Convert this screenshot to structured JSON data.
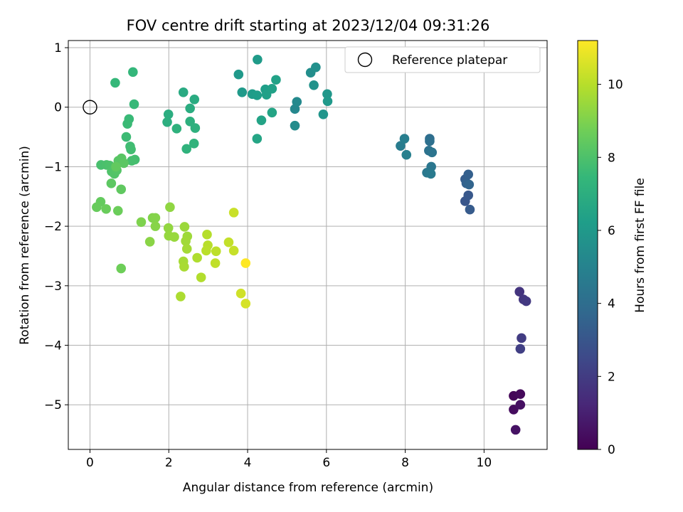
{
  "chart_data": {
    "type": "scatter",
    "title": "FOV centre drift starting at 2023/12/04 09:31:26",
    "xlabel": "Angular distance from reference (arcmin)",
    "ylabel": "Rotation from reference (arcmin)",
    "xlim": [
      -0.55,
      11.6
    ],
    "ylim": [
      -5.75,
      1.12
    ],
    "x_ticks": [
      0,
      2,
      4,
      6,
      8,
      10
    ],
    "y_ticks": [
      1,
      0,
      -1,
      -2,
      -3,
      -4,
      -5
    ],
    "grid": true,
    "legend": {
      "placement": "top-right",
      "entries": [
        "Reference platepar"
      ]
    },
    "reference_point": {
      "x": 0,
      "y": 0
    },
    "colorbar": {
      "label": "Hours from first FF file",
      "range": [
        0,
        11.2
      ],
      "ticks": [
        0,
        2,
        4,
        6,
        8,
        10
      ],
      "colormap": [
        "#440154",
        "#482878",
        "#3e4989",
        "#31688e",
        "#26828e",
        "#1f9e89",
        "#35b779",
        "#6ece58",
        "#b5de2b",
        "#fde725"
      ]
    },
    "series": [
      {
        "points": [
          [
            10.75,
            -4.85,
            0.15
          ],
          [
            10.92,
            -4.82,
            0.25
          ],
          [
            10.75,
            -5.08,
            0.35
          ],
          [
            10.92,
            -5.0,
            0.45
          ],
          [
            10.8,
            -5.42,
            0.55
          ],
          [
            10.9,
            -3.1,
            1.7
          ],
          [
            11.0,
            -3.23,
            1.8
          ],
          [
            11.07,
            -3.26,
            1.9
          ],
          [
            10.95,
            -3.88,
            2.0
          ],
          [
            10.92,
            -4.06,
            2.1
          ],
          [
            9.52,
            -1.58,
            3.0
          ],
          [
            9.6,
            -1.48,
            3.1
          ],
          [
            9.64,
            -1.72,
            3.2
          ],
          [
            9.52,
            -1.21,
            3.3
          ],
          [
            9.6,
            -1.13,
            3.4
          ],
          [
            9.55,
            -1.28,
            3.5
          ],
          [
            9.62,
            -1.3,
            3.6
          ],
          [
            8.62,
            -0.53,
            4.0
          ],
          [
            8.62,
            -0.57,
            4.1
          ],
          [
            8.6,
            -0.73,
            4.2
          ],
          [
            8.68,
            -0.76,
            4.3
          ],
          [
            8.66,
            -1.0,
            4.4
          ],
          [
            8.55,
            -1.1,
            4.5
          ],
          [
            8.65,
            -1.12,
            4.6
          ],
          [
            7.88,
            -0.65,
            4.7
          ],
          [
            7.98,
            -0.53,
            4.8
          ],
          [
            8.03,
            -0.8,
            4.9
          ],
          [
            5.2,
            -0.03,
            5.2
          ],
          [
            5.25,
            0.09,
            5.3
          ],
          [
            5.2,
            -0.31,
            5.4
          ],
          [
            5.6,
            0.58,
            5.5
          ],
          [
            5.73,
            0.67,
            5.6
          ],
          [
            5.68,
            0.37,
            5.7
          ],
          [
            5.92,
            -0.12,
            5.8
          ],
          [
            6.02,
            0.22,
            5.9
          ],
          [
            6.03,
            0.1,
            6.0
          ],
          [
            3.77,
            0.55,
            6.0
          ],
          [
            3.86,
            0.25,
            6.05
          ],
          [
            4.25,
            0.8,
            6.1
          ],
          [
            4.12,
            0.22,
            6.15
          ],
          [
            4.24,
            0.2,
            6.2
          ],
          [
            4.45,
            0.3,
            6.25
          ],
          [
            4.48,
            0.21,
            6.3
          ],
          [
            4.62,
            0.31,
            6.35
          ],
          [
            4.72,
            0.46,
            6.4
          ],
          [
            4.35,
            -0.22,
            6.45
          ],
          [
            4.62,
            -0.09,
            6.5
          ],
          [
            4.24,
            -0.53,
            6.55
          ],
          [
            2.37,
            0.25,
            6.8
          ],
          [
            2.65,
            0.13,
            6.85
          ],
          [
            2.54,
            -0.02,
            6.9
          ],
          [
            1.99,
            -0.12,
            6.95
          ],
          [
            1.96,
            -0.25,
            7.0
          ],
          [
            2.54,
            -0.24,
            7.05
          ],
          [
            2.67,
            -0.35,
            7.1
          ],
          [
            2.2,
            -0.36,
            7.15
          ],
          [
            2.45,
            -0.7,
            7.2
          ],
          [
            2.64,
            -0.61,
            7.25
          ],
          [
            1.09,
            0.59,
            7.4
          ],
          [
            0.64,
            0.41,
            7.45
          ],
          [
            1.12,
            0.05,
            7.5
          ],
          [
            0.99,
            -0.2,
            7.55
          ],
          [
            0.95,
            -0.28,
            7.6
          ],
          [
            0.92,
            -0.5,
            7.65
          ],
          [
            1.02,
            -0.66,
            7.7
          ],
          [
            1.04,
            -0.71,
            7.75
          ],
          [
            1.14,
            -0.88,
            7.8
          ],
          [
            1.06,
            -0.9,
            7.85
          ],
          [
            0.28,
            -0.97,
            7.9
          ],
          [
            0.42,
            -0.97,
            7.95
          ],
          [
            0.5,
            -0.98,
            8.0
          ],
          [
            0.55,
            -1.08,
            8.05
          ],
          [
            0.62,
            -1.12,
            8.1
          ],
          [
            0.68,
            -1.06,
            8.15
          ],
          [
            0.72,
            -0.9,
            8.2
          ],
          [
            0.8,
            -0.86,
            8.25
          ],
          [
            0.86,
            -0.94,
            8.3
          ],
          [
            0.54,
            -1.28,
            8.35
          ],
          [
            0.79,
            -1.38,
            8.4
          ],
          [
            0.66,
            -1.0,
            8.45
          ],
          [
            0.27,
            -1.59,
            8.5
          ],
          [
            0.17,
            -1.68,
            8.55
          ],
          [
            0.41,
            -1.71,
            8.6
          ],
          [
            0.71,
            -1.74,
            8.65
          ],
          [
            0.79,
            -2.71,
            8.7
          ],
          [
            1.3,
            -1.93,
            9.0
          ],
          [
            1.59,
            -1.86,
            9.05
          ],
          [
            1.66,
            -1.86,
            9.1
          ],
          [
            1.66,
            -2.0,
            9.15
          ],
          [
            1.52,
            -2.26,
            9.2
          ],
          [
            2.03,
            -1.68,
            9.3
          ],
          [
            1.99,
            -2.03,
            9.35
          ],
          [
            2.0,
            -2.16,
            9.4
          ],
          [
            2.14,
            -2.18,
            9.45
          ],
          [
            2.4,
            -2.01,
            9.5
          ],
          [
            2.47,
            -2.17,
            9.55
          ],
          [
            2.43,
            -2.25,
            9.6
          ],
          [
            2.46,
            -2.38,
            9.65
          ],
          [
            2.37,
            -2.59,
            9.7
          ],
          [
            2.39,
            -2.68,
            9.75
          ],
          [
            2.3,
            -3.18,
            9.8
          ],
          [
            2.72,
            -2.53,
            9.85
          ],
          [
            2.82,
            -2.86,
            9.9
          ],
          [
            2.97,
            -2.14,
            9.95
          ],
          [
            2.99,
            -2.32,
            10.0
          ],
          [
            2.95,
            -2.41,
            10.05
          ],
          [
            3.2,
            -2.42,
            10.1
          ],
          [
            3.18,
            -2.62,
            10.15
          ],
          [
            3.52,
            -2.27,
            10.2
          ],
          [
            3.65,
            -2.41,
            10.25
          ],
          [
            3.65,
            -1.77,
            10.3
          ],
          [
            3.83,
            -3.13,
            10.4
          ],
          [
            3.95,
            -3.3,
            10.5
          ],
          [
            3.95,
            -2.62,
            11.2
          ]
        ]
      }
    ]
  }
}
